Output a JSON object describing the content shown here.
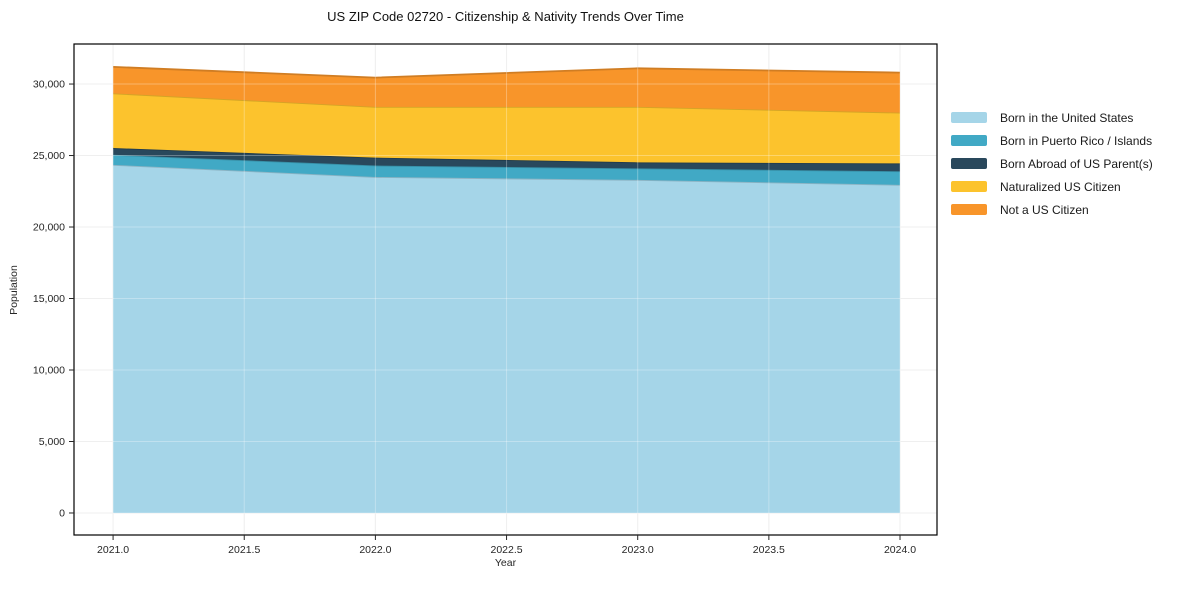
{
  "chart_data": {
    "type": "area",
    "stacked": true,
    "title": "US ZIP Code 02720 - Citizenship & Nativity Trends Over Time",
    "xlabel": "Year",
    "ylabel": "Population",
    "x": [
      2021,
      2022,
      2023,
      2024
    ],
    "series": [
      {
        "name": "Born in the United States",
        "color": "#A5D5E8",
        "values": [
          24350,
          23500,
          23300,
          22950
        ]
      },
      {
        "name": "Born in Puerto Rico / Islands",
        "color": "#41A9C5",
        "values": [
          700,
          800,
          800,
          950
        ]
      },
      {
        "name": "Born Abroad of US Parent(s)",
        "color": "#29485C",
        "values": [
          475,
          550,
          425,
          550
        ]
      },
      {
        "name": "Naturalized US Citizen",
        "color": "#FCC32D",
        "values": [
          3825,
          3550,
          3875,
          3550
        ]
      },
      {
        "name": "Not a US Citizen",
        "color": "#F8952A",
        "values": [
          1850,
          2050,
          2700,
          2800
        ]
      }
    ],
    "totals": [
      31200,
      30450,
      31100,
      30800
    ],
    "x_tick_labels": [
      "2021.0",
      "2021.5",
      "2022.0",
      "2022.5",
      "2023.0",
      "2023.5",
      "2024.0"
    ],
    "y_tick_labels": [
      "0",
      "5,000",
      "10,000",
      "15,000",
      "20,000",
      "25,000",
      "30,000"
    ],
    "xlim": [
      2020.851,
      2024.141
    ],
    "ylim": [
      -1540,
      32800
    ],
    "grid": true,
    "legend_position": "right",
    "spine_color": "#000000",
    "gridline_color": "#E9E9E9"
  }
}
